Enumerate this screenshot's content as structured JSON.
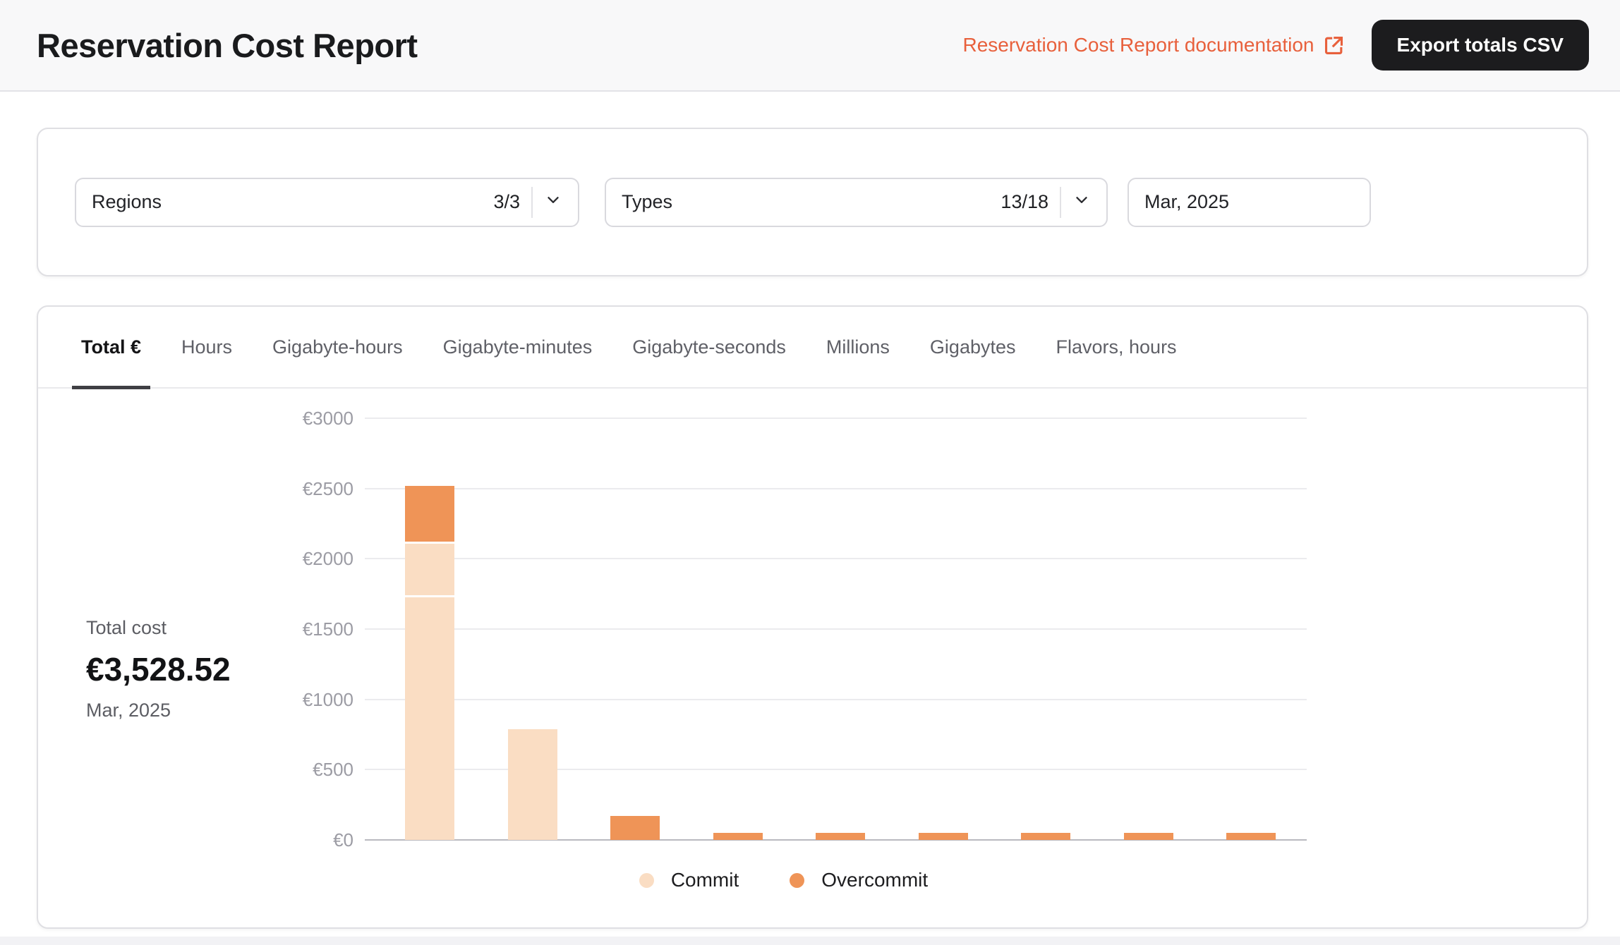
{
  "header": {
    "title": "Reservation Cost Report",
    "doc_link_label": "Reservation Cost Report documentation",
    "export_button_label": "Export totals CSV"
  },
  "filters": {
    "regions": {
      "label": "Regions",
      "count": "3/3"
    },
    "types": {
      "label": "Types",
      "count": "13/18"
    },
    "month": {
      "value": "Mar, 2025"
    }
  },
  "tabs": [
    {
      "label": "Total €",
      "active": true
    },
    {
      "label": "Hours"
    },
    {
      "label": "Gigabyte-hours"
    },
    {
      "label": "Gigabyte-minutes"
    },
    {
      "label": "Gigabyte-seconds"
    },
    {
      "label": "Millions"
    },
    {
      "label": "Gigabytes"
    },
    {
      "label": "Flavors, hours"
    }
  ],
  "summary": {
    "label": "Total cost",
    "amount": "€3,528.52",
    "period": "Mar, 2025"
  },
  "chart_data": {
    "type": "bar",
    "stacked": true,
    "currency": "EUR",
    "title": "",
    "xlabel": "",
    "ylabel": "",
    "ylim": [
      0,
      3000
    ],
    "y_ticks": [
      "€0",
      "€500",
      "€1000",
      "€1500",
      "€2000",
      "€2500",
      "€3000"
    ],
    "x_tick_labels_visible": false,
    "grid": true,
    "legend": {
      "position": "bottom",
      "entries": [
        {
          "name": "Commit",
          "color": "#FADDC3"
        },
        {
          "name": "Overcommit",
          "color": "#EF9457"
        }
      ]
    },
    "series": [
      {
        "name": "Commit",
        "values": [
          2120,
          790,
          0,
          0,
          0,
          0,
          0,
          0,
          0
        ]
      },
      {
        "name": "Overcommit",
        "values": [
          400,
          0,
          170,
          50,
          50,
          50,
          50,
          50,
          50
        ]
      }
    ],
    "bars": [
      {
        "total": 2520,
        "segments": [
          {
            "series": "Commit",
            "value": 1740
          },
          {
            "series": "Commit",
            "value": 380
          },
          {
            "series": "Overcommit",
            "value": 400
          }
        ]
      },
      {
        "total": 790,
        "segments": [
          {
            "series": "Commit",
            "value": 790
          }
        ]
      },
      {
        "total": 170,
        "segments": [
          {
            "series": "Overcommit",
            "value": 170
          }
        ]
      },
      {
        "total": 50,
        "segments": [
          {
            "series": "Overcommit",
            "value": 50
          }
        ]
      },
      {
        "total": 50,
        "segments": [
          {
            "series": "Overcommit",
            "value": 50
          }
        ]
      },
      {
        "total": 50,
        "segments": [
          {
            "series": "Overcommit",
            "value": 50
          }
        ]
      },
      {
        "total": 50,
        "segments": [
          {
            "series": "Overcommit",
            "value": 50
          }
        ]
      },
      {
        "total": 50,
        "segments": [
          {
            "series": "Overcommit",
            "value": 50
          }
        ]
      },
      {
        "total": 50,
        "segments": [
          {
            "series": "Overcommit",
            "value": 50
          }
        ]
      }
    ]
  },
  "colors": {
    "commit": "#FADDC3",
    "overcommit": "#EF9457",
    "accent_orange": "#E8603C",
    "button_bg": "#1C1C1E"
  }
}
